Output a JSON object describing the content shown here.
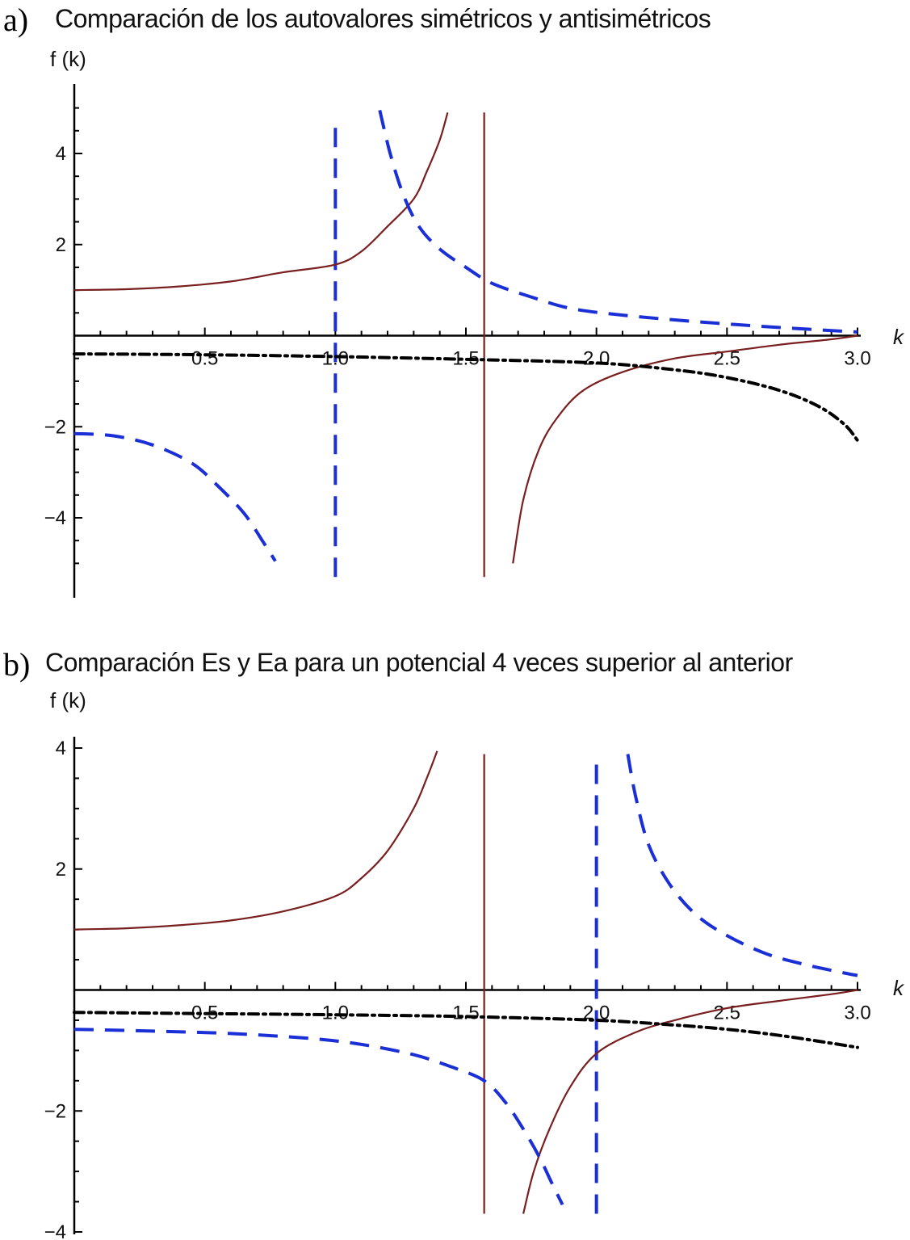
{
  "chart_data": [
    {
      "panel_label": "a)",
      "title": "Comparación  de los autovalores  simétricos  y antisimétricos",
      "type": "line",
      "xlabel": "k",
      "ylabel": "f (k)",
      "xlim": [
        0,
        3.0
      ],
      "ylim": [
        -5.4,
        5.1
      ],
      "xticks": [
        0.5,
        1.0,
        1.5,
        2.0,
        2.5,
        3.0
      ],
      "xtick_labels": [
        "0.5",
        "1.0",
        "1.5",
        "2.0",
        "2.5",
        "3.0"
      ],
      "yticks": [
        -4,
        -2,
        2,
        4
      ],
      "ytick_labels": [
        "−4",
        "−2",
        "2",
        "4"
      ],
      "series": [
        {
          "style": "solid",
          "color": "#7a1f1f",
          "x": [
            0,
            0.2,
            0.4,
            0.6,
            0.8,
            1.0,
            1.1,
            1.2,
            1.3,
            1.35,
            1.4,
            1.43
          ],
          "y": [
            1.0,
            1.02,
            1.08,
            1.19,
            1.39,
            1.56,
            1.85,
            2.4,
            3.0,
            3.6,
            4.3,
            4.9
          ]
        },
        {
          "style": "solid",
          "color": "#7a1f1f",
          "x": [
            1.68,
            1.72,
            1.78,
            1.85,
            1.95,
            2.1,
            2.3,
            2.5,
            2.7,
            2.9,
            3.0
          ],
          "y": [
            -5.0,
            -3.6,
            -2.5,
            -1.8,
            -1.2,
            -0.8,
            -0.5,
            -0.35,
            -0.2,
            -0.08,
            0.0
          ]
        },
        {
          "style": "dashed",
          "color": "#1a2fd6",
          "x": [
            0,
            0.15,
            0.3,
            0.45,
            0.55,
            0.65,
            0.72,
            0.77
          ],
          "y": [
            -2.15,
            -2.2,
            -2.4,
            -2.8,
            -3.3,
            -3.9,
            -4.5,
            -4.95
          ]
        },
        {
          "style": "dashed",
          "color": "#1a2fd6",
          "x": [
            1.17,
            1.21,
            1.26,
            1.32,
            1.4,
            1.5,
            1.6,
            1.75,
            1.9,
            2.1,
            2.4,
            2.7,
            3.0
          ],
          "y": [
            4.95,
            4.0,
            3.1,
            2.4,
            1.9,
            1.5,
            1.15,
            0.85,
            0.6,
            0.45,
            0.3,
            0.18,
            0.08
          ]
        },
        {
          "style": "dashdot",
          "color": "#000000",
          "x": [
            0,
            0.5,
            1.0,
            1.5,
            2.0,
            2.3,
            2.5,
            2.7,
            2.85,
            2.95,
            3.0
          ],
          "y": [
            -0.4,
            -0.42,
            -0.46,
            -0.52,
            -0.6,
            -0.75,
            -0.92,
            -1.2,
            -1.55,
            -1.95,
            -2.3
          ]
        }
      ],
      "asymptotes": [
        {
          "x": 1.0,
          "style": "dashed",
          "color": "#1a2fd6",
          "y": [
            -5.3,
            4.8
          ]
        },
        {
          "x": 1.57,
          "style": "solid",
          "color": "#7a1f1f",
          "y": [
            -5.3,
            4.9
          ]
        }
      ]
    },
    {
      "panel_label": "b)",
      "title": "Comparación  Es y Ea para un potencial  4 veces superior  al anterior",
      "type": "line",
      "xlabel": "k",
      "ylabel": "f (k)",
      "xlim": [
        0,
        3.0
      ],
      "ylim": [
        -4.0,
        4.2
      ],
      "xticks": [
        0.5,
        1.0,
        1.5,
        2.0,
        2.5,
        3.0
      ],
      "xtick_labels": [
        "0.5",
        "1.0",
        "1.5",
        "2.0",
        "2.5",
        "3.0"
      ],
      "yticks": [
        -4,
        -2,
        2,
        4
      ],
      "ytick_labels": [
        "−4",
        "−2",
        "2",
        "4"
      ],
      "series": [
        {
          "style": "solid",
          "color": "#7a1f1f",
          "x": [
            0,
            0.2,
            0.4,
            0.6,
            0.8,
            1.0,
            1.1,
            1.2,
            1.3,
            1.35,
            1.39
          ],
          "y": [
            1.0,
            1.02,
            1.07,
            1.15,
            1.3,
            1.55,
            1.85,
            2.3,
            3.0,
            3.5,
            3.95
          ]
        },
        {
          "style": "solid",
          "color": "#7a1f1f",
          "x": [
            1.72,
            1.76,
            1.82,
            1.9,
            2.0,
            2.15,
            2.3,
            2.5,
            2.7,
            2.9,
            3.0
          ],
          "y": [
            -3.7,
            -3.0,
            -2.3,
            -1.6,
            -1.05,
            -0.7,
            -0.5,
            -0.3,
            -0.18,
            -0.07,
            0.0
          ]
        },
        {
          "style": "dashed",
          "color": "#1a2fd6",
          "x": [
            0,
            0.3,
            0.6,
            0.9,
            1.1,
            1.3,
            1.45,
            1.57,
            1.65,
            1.72,
            1.78,
            1.83,
            1.87
          ],
          "y": [
            -0.65,
            -0.68,
            -0.72,
            -0.8,
            -0.9,
            -1.07,
            -1.28,
            -1.5,
            -1.85,
            -2.3,
            -2.75,
            -3.2,
            -3.55
          ]
        },
        {
          "style": "dashed",
          "color": "#1a2fd6",
          "x": [
            2.12,
            2.15,
            2.2,
            2.28,
            2.38,
            2.5,
            2.65,
            2.8,
            2.95,
            3.0
          ],
          "y": [
            3.9,
            3.2,
            2.4,
            1.75,
            1.25,
            0.9,
            0.6,
            0.42,
            0.28,
            0.24
          ]
        },
        {
          "style": "dashdot",
          "color": "#000000",
          "x": [
            0,
            0.5,
            1.0,
            1.5,
            2.0,
            2.3,
            2.5,
            2.7,
            2.9,
            3.0
          ],
          "y": [
            -0.37,
            -0.39,
            -0.41,
            -0.44,
            -0.5,
            -0.58,
            -0.65,
            -0.75,
            -0.88,
            -0.95
          ]
        }
      ],
      "asymptotes": [
        {
          "x": 1.57,
          "style": "solid",
          "color": "#7a1f1f",
          "y": [
            -3.7,
            3.9
          ]
        },
        {
          "x": 2.0,
          "style": "dashed",
          "color": "#1a2fd6",
          "y": [
            -3.7,
            3.75
          ]
        }
      ]
    }
  ]
}
